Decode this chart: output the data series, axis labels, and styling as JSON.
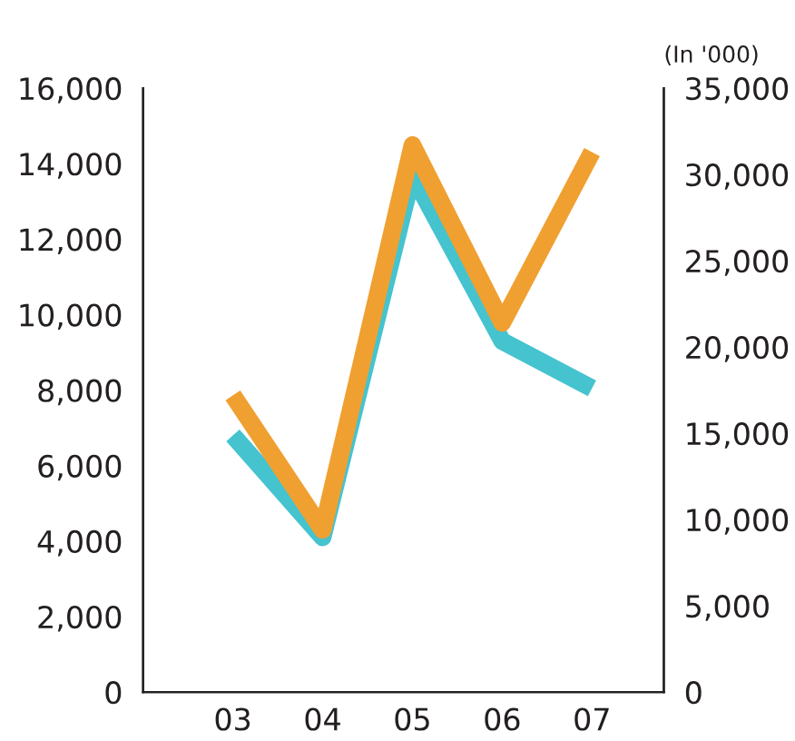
{
  "chart_data": {
    "type": "line",
    "categories": [
      "03",
      "04",
      "05",
      "06",
      "07"
    ],
    "y2label": "(In '000)",
    "series": [
      {
        "color": "#45c3cf",
        "values": [
          6800,
          4100,
          13700,
          9300,
          8050
        ]
      },
      {
        "color": "#f0a030",
        "axis": "y2",
        "values": [
          17200,
          9400,
          31700,
          21400,
          31300
        ]
      }
    ],
    "ylim": [
      0,
      16000
    ],
    "yticks": [
      0,
      {
        "value": 2000,
        "label": "2,000"
      },
      {
        "value": 4000,
        "label": "4,000"
      },
      {
        "value": 6000,
        "label": "6,000"
      },
      {
        "value": 8000,
        "label": "8,000"
      },
      {
        "value": 10000,
        "label": "10,000"
      },
      {
        "value": 12000,
        "label": "12,000"
      },
      {
        "value": 14000,
        "label": "14,000"
      },
      {
        "value": 16000,
        "label": "16,000"
      }
    ],
    "y2lim": [
      0,
      35000
    ],
    "y2ticks": [
      0,
      {
        "value": 5000,
        "label": "5,000"
      },
      {
        "value": 10000,
        "label": "10,000"
      },
      {
        "value": 15000,
        "label": "15,000"
      },
      {
        "value": 20000,
        "label": "20,000"
      },
      {
        "value": 25000,
        "label": "25,000"
      },
      {
        "value": 30000,
        "label": "30,000"
      },
      {
        "value": 35000,
        "label": "35,000"
      }
    ],
    "grid": false,
    "legend": false,
    "marker": "none",
    "line_style": "solid"
  }
}
